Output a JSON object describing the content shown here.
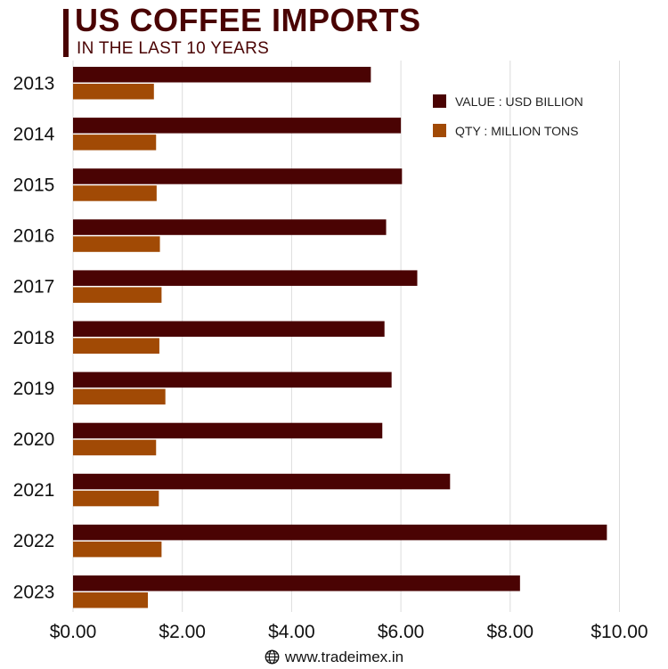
{
  "header": {
    "title": "US COFFEE IMPORTS",
    "subtitle": "IN THE LAST 10 YEARS"
  },
  "footer": {
    "website": "www.tradeimex.in",
    "icon": "globe-icon"
  },
  "colors": {
    "value": "#4a0303",
    "qty": "#a14a05",
    "title": "#4a0303",
    "grid": "#dcdcdc"
  },
  "chart_data": {
    "type": "bar",
    "orientation": "horizontal",
    "title": "US COFFEE IMPORTS",
    "subtitle": "IN THE LAST 10 YEARS",
    "categories": [
      "2013",
      "2014",
      "2015",
      "2016",
      "2017",
      "2018",
      "2019",
      "2020",
      "2021",
      "2022",
      "2023"
    ],
    "series": [
      {
        "name": "VALUE : USD BILLION",
        "values": [
          5.45,
          6.0,
          6.02,
          5.73,
          6.3,
          5.7,
          5.83,
          5.66,
          6.9,
          9.77,
          8.18
        ]
      },
      {
        "name": "QTY : MILLION TONS",
        "values": [
          1.48,
          1.52,
          1.53,
          1.59,
          1.62,
          1.58,
          1.69,
          1.52,
          1.57,
          1.62,
          1.37
        ]
      }
    ],
    "xlim": [
      0,
      10
    ],
    "xticks": [
      "$0.00",
      "$2.00",
      "$4.00",
      "$6.00",
      "$8.00",
      "$10.00"
    ],
    "grid": true,
    "legend_position": "top-right"
  }
}
